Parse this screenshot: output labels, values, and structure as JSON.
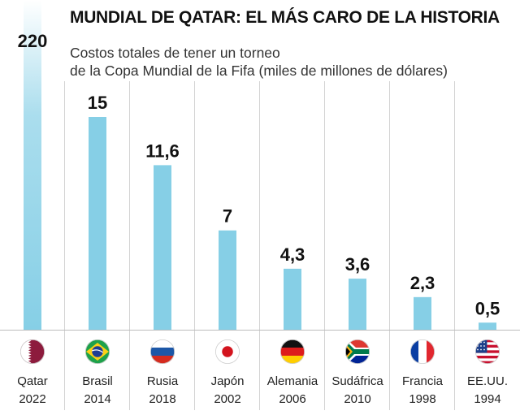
{
  "chart_data": {
    "type": "bar",
    "title": "MUNDIAL DE QATAR: EL MÁS CARO DE LA HISTORIA",
    "subtitle_line1": "Costos totales de tener un torneo",
    "subtitle_line2": "de la Copa Mundial de la Fifa (miles de millones de dólares)",
    "xlabel": "",
    "ylabel": "",
    "grid": "vertical",
    "legend": "none",
    "bar_color": "#86cfe6",
    "categories": [
      {
        "country": "Qatar",
        "year": "2022",
        "value": 220,
        "label": "220",
        "flag": "qatar-flag-icon"
      },
      {
        "country": "Brasil",
        "year": "2014",
        "value": 15,
        "label": "15",
        "flag": "brazil-flag-icon"
      },
      {
        "country": "Rusia",
        "year": "2018",
        "value": 11.6,
        "label": "11,6",
        "flag": "russia-flag-icon"
      },
      {
        "country": "Japón",
        "year": "2002",
        "value": 7,
        "label": "7",
        "flag": "japan-flag-icon"
      },
      {
        "country": "Alemania",
        "year": "2006",
        "value": 4.3,
        "label": "4,3",
        "flag": "germany-flag-icon"
      },
      {
        "country": "Sudáfrica",
        "year": "2010",
        "value": 3.6,
        "label": "3,6",
        "flag": "south-africa-flag-icon"
      },
      {
        "country": "Francia",
        "year": "1998",
        "value": 2.3,
        "label": "2,3",
        "flag": "france-flag-icon"
      },
      {
        "country": "EE.UU.",
        "year": "1994",
        "value": 0.5,
        "label": "0,5",
        "flag": "usa-flag-icon"
      }
    ],
    "notes": "Qatar bar is truncated (broken) at the top and fades out"
  }
}
